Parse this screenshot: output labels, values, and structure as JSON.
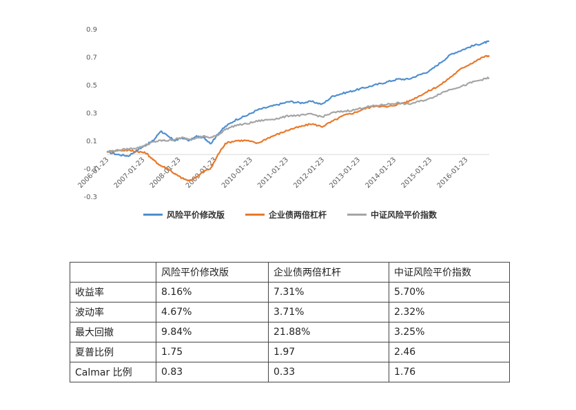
{
  "chart_data": {
    "type": "line",
    "ylim": [
      -0.3,
      0.9
    ],
    "yticks": [
      "0.9",
      "0.7",
      "0.5",
      "0.3",
      "0.1",
      "-0.1",
      "-0.3"
    ],
    "xticks": [
      "2006-01-23",
      "2007-01-23",
      "2008-01-23",
      "2009-01-23",
      "2010-01-23",
      "2011-01-23",
      "2012-01-23",
      "2013-01-23",
      "2014-01-23",
      "2015-01-23",
      "2016-01-23"
    ],
    "x_range": [
      2006.0,
      2016.65
    ],
    "series": [
      {
        "name": "风险平价修改版",
        "color": "#4f8fd0",
        "x": [
          2006.0,
          2006.3,
          2006.6,
          2006.9,
          2007.1,
          2007.3,
          2007.5,
          2007.7,
          2007.9,
          2008.1,
          2008.3,
          2008.5,
          2008.7,
          2008.9,
          2009.1,
          2009.3,
          2009.6,
          2009.9,
          2010.2,
          2010.5,
          2010.8,
          2011.1,
          2011.4,
          2011.7,
          2012.0,
          2012.3,
          2012.6,
          2012.9,
          2013.2,
          2013.5,
          2013.8,
          2014.1,
          2014.4,
          2014.7,
          2015.0,
          2015.3,
          2015.6,
          2015.9,
          2016.2,
          2016.5,
          2016.65
        ],
        "y": [
          0.02,
          0.0,
          -0.01,
          0.04,
          0.07,
          0.1,
          0.17,
          0.13,
          0.1,
          0.12,
          0.1,
          0.13,
          0.12,
          0.08,
          0.15,
          0.2,
          0.25,
          0.28,
          0.32,
          0.34,
          0.36,
          0.38,
          0.37,
          0.38,
          0.36,
          0.42,
          0.44,
          0.46,
          0.48,
          0.5,
          0.52,
          0.54,
          0.54,
          0.57,
          0.6,
          0.66,
          0.72,
          0.75,
          0.78,
          0.8,
          0.81
        ]
      },
      {
        "name": "企业债两倍杠杆",
        "color": "#e8792a",
        "x": [
          2006.0,
          2006.3,
          2006.6,
          2006.9,
          2007.1,
          2007.3,
          2007.5,
          2007.7,
          2007.9,
          2008.1,
          2008.3,
          2008.5,
          2008.7,
          2008.9,
          2009.1,
          2009.3,
          2009.6,
          2009.9,
          2010.2,
          2010.5,
          2010.8,
          2011.1,
          2011.4,
          2011.7,
          2012.0,
          2012.3,
          2012.6,
          2012.9,
          2013.2,
          2013.5,
          2013.8,
          2014.1,
          2014.4,
          2014.7,
          2015.0,
          2015.3,
          2015.6,
          2015.9,
          2016.2,
          2016.5,
          2016.65
        ],
        "y": [
          0.02,
          0.03,
          0.03,
          0.02,
          0.01,
          -0.04,
          -0.08,
          -0.1,
          -0.14,
          -0.17,
          -0.19,
          -0.16,
          -0.12,
          -0.1,
          0.0,
          0.08,
          0.1,
          0.1,
          0.08,
          0.12,
          0.15,
          0.18,
          0.2,
          0.22,
          0.2,
          0.24,
          0.28,
          0.3,
          0.33,
          0.35,
          0.34,
          0.36,
          0.38,
          0.42,
          0.46,
          0.5,
          0.56,
          0.62,
          0.66,
          0.7,
          0.71
        ]
      },
      {
        "name": "中证风险平价指数",
        "color": "#a5a5a5",
        "x": [
          2006.0,
          2006.3,
          2006.6,
          2006.9,
          2007.1,
          2007.3,
          2007.5,
          2007.7,
          2007.9,
          2008.1,
          2008.3,
          2008.5,
          2008.7,
          2008.9,
          2009.1,
          2009.3,
          2009.6,
          2009.9,
          2010.2,
          2010.5,
          2010.8,
          2011.1,
          2011.4,
          2011.7,
          2012.0,
          2012.3,
          2012.6,
          2012.9,
          2013.2,
          2013.5,
          2013.8,
          2014.1,
          2014.4,
          2014.7,
          2015.0,
          2015.3,
          2015.6,
          2015.9,
          2016.2,
          2016.5,
          2016.65
        ],
        "y": [
          0.02,
          0.03,
          0.04,
          0.05,
          0.07,
          0.09,
          0.1,
          0.1,
          0.11,
          0.12,
          0.11,
          0.12,
          0.13,
          0.12,
          0.14,
          0.18,
          0.21,
          0.22,
          0.24,
          0.25,
          0.26,
          0.28,
          0.28,
          0.29,
          0.27,
          0.3,
          0.31,
          0.32,
          0.34,
          0.35,
          0.36,
          0.37,
          0.36,
          0.38,
          0.4,
          0.44,
          0.47,
          0.49,
          0.52,
          0.54,
          0.55
        ]
      }
    ]
  },
  "table": {
    "headers": [
      "",
      "风险平价修改版",
      "企业债两倍杠杆",
      "中证风险平价指数"
    ],
    "rows": [
      [
        "收益率",
        "8.16%",
        "7.31%",
        "5.70%"
      ],
      [
        "波动率",
        "4.67%",
        "3.71%",
        "2.32%"
      ],
      [
        "最大回撤",
        "9.84%",
        "21.88%",
        "3.25%"
      ],
      [
        "夏普比例",
        "1.75",
        "1.97",
        "2.46"
      ],
      [
        "Calmar 比例",
        "0.83",
        "0.33",
        "1.76"
      ]
    ]
  }
}
